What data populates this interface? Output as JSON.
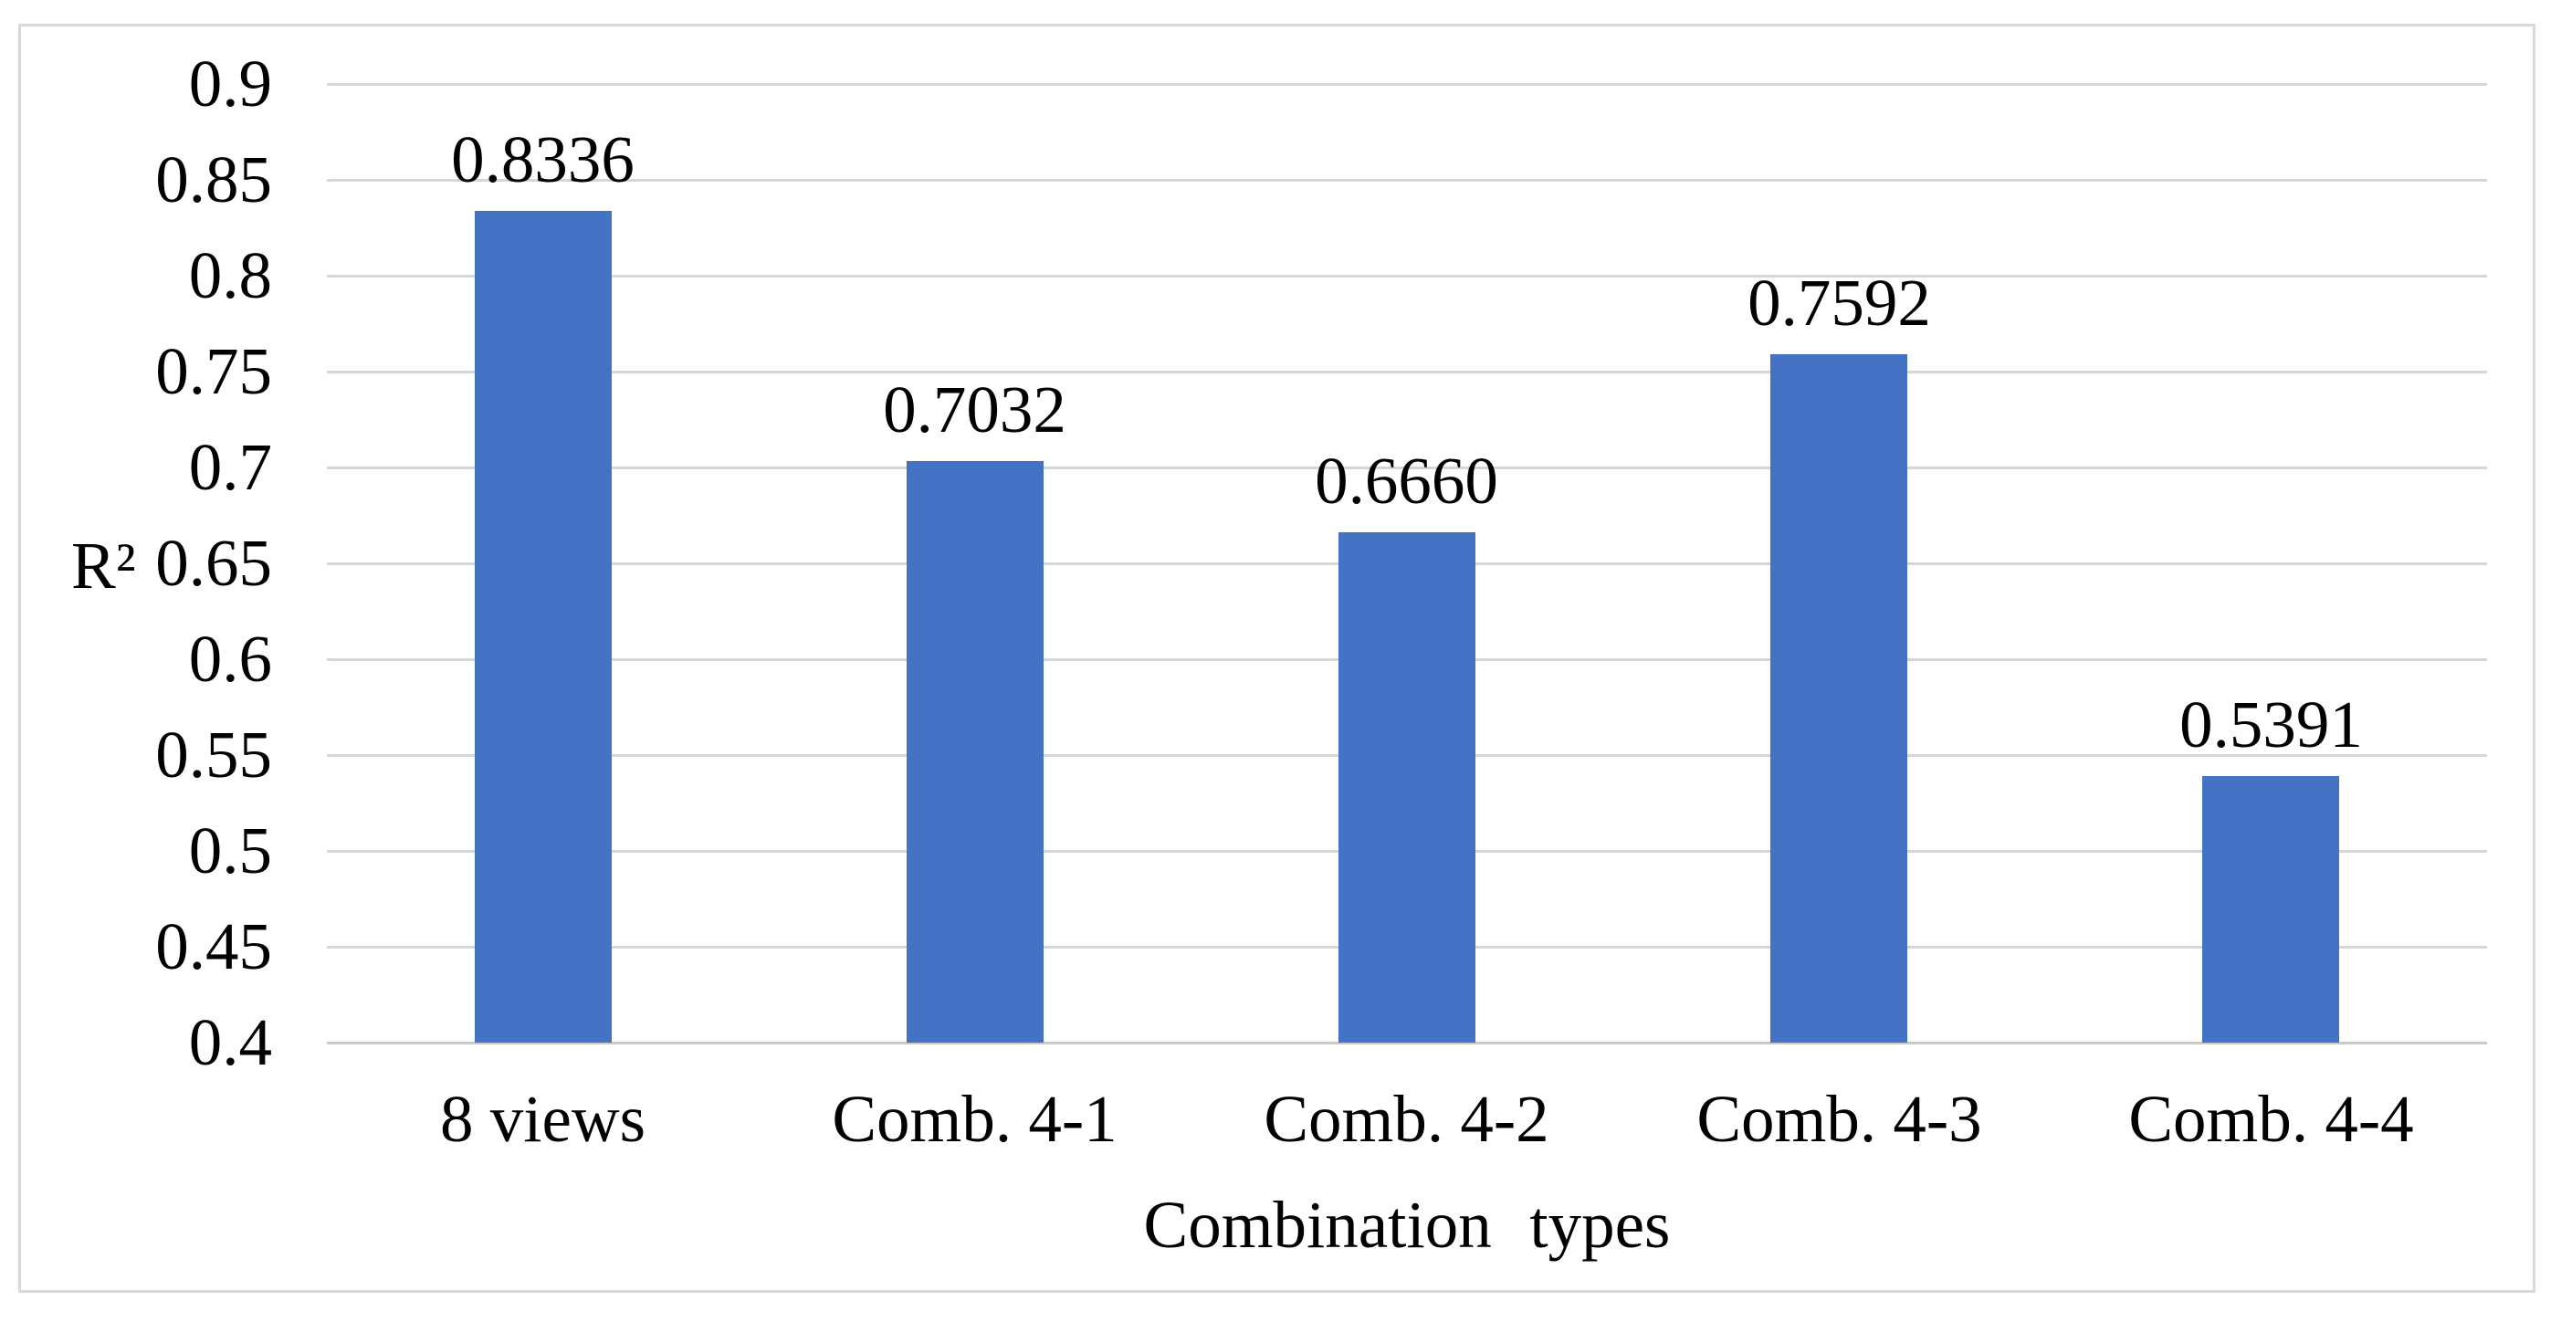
{
  "chart_data": {
    "type": "bar",
    "title": "",
    "xlabel": "Combination types",
    "ylabel": "R²",
    "categories": [
      "8 views",
      "Comb. 4-1",
      "Comb. 4-2",
      "Comb. 4-3",
      "Comb. 4-4"
    ],
    "values": [
      0.8336,
      0.7032,
      0.666,
      0.7592,
      0.5391
    ],
    "value_labels": [
      "0.8336",
      "0.7032",
      "0.6660",
      "0.7592",
      "0.5391"
    ],
    "ylim": [
      0.4,
      0.9
    ],
    "ytick_step": 0.05,
    "yticks": [
      "0.9",
      "0.85",
      "0.8",
      "0.75",
      "0.7",
      "0.65",
      "0.6",
      "0.55",
      "0.5",
      "0.45",
      "0.4"
    ],
    "grid": true,
    "legend": false,
    "bar_color": "#4472C4",
    "gridline_color": "#D6D6D6",
    "axis_line_color": "#C9C9C9",
    "frame_border_color": "#D9D9D9",
    "text_color": "#000000"
  }
}
